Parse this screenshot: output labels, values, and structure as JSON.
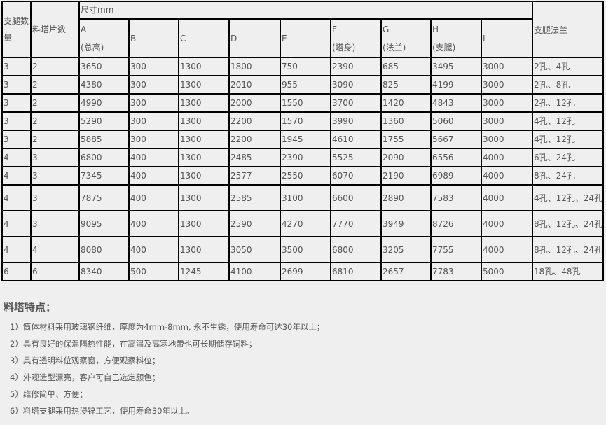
{
  "table": {
    "header": {
      "legs": "支腿数量",
      "pieces": "料塔片数",
      "size": "尺寸mm",
      "flange": "支腿法兰",
      "cols": [
        {
          "label": "A",
          "sub": "(总高)"
        },
        {
          "label": "B",
          "sub": ""
        },
        {
          "label": "C",
          "sub": ""
        },
        {
          "label": "D",
          "sub": ""
        },
        {
          "label": "E",
          "sub": ""
        },
        {
          "label": "F",
          "sub": "(塔身)"
        },
        {
          "label": "G",
          "sub": "(法兰)"
        },
        {
          "label": "H",
          "sub": "(支腿)"
        },
        {
          "label": "I",
          "sub": ""
        }
      ]
    },
    "rows": [
      [
        "3",
        "2",
        "3650",
        "300",
        "1300",
        "1800",
        "750",
        "2390",
        "685",
        "3495",
        "3000",
        "2孔、4孔"
      ],
      [
        "3",
        "2",
        "4380",
        "300",
        "1300",
        "2010",
        "955",
        "3090",
        "825",
        "4199",
        "3000",
        "2孔、8孔"
      ],
      [
        "3",
        "2",
        "4990",
        "300",
        "1300",
        "2000",
        "1550",
        "3700",
        "1420",
        "4843",
        "3000",
        "2孔、12孔"
      ],
      [
        "3",
        "2",
        "5290",
        "300",
        "1300",
        "2200",
        "1570",
        "3990",
        "1360",
        "5060",
        "3000",
        "4孔、12孔"
      ],
      [
        "3",
        "2",
        "5885",
        "300",
        "1300",
        "2200",
        "1945",
        "4610",
        "1755",
        "5667",
        "3000",
        "4孔、12孔"
      ],
      [
        "4",
        "3",
        "6800",
        "400",
        "1300",
        "2485",
        "2390",
        "5525",
        "2090",
        "6556",
        "4000",
        "6孔、24孔"
      ],
      [
        "4",
        "3",
        "7345",
        "400",
        "1300",
        "2577",
        "2550",
        "6070",
        "2190",
        "6989",
        "4000",
        "8孔、24孔"
      ],
      [
        "4",
        "3",
        "7875",
        "400",
        "1300",
        "2585",
        "3100",
        "6600",
        "2890",
        "7583",
        "4000",
        "4孔、12孔、24孔"
      ],
      [
        "4",
        "3",
        "9095",
        "400",
        "1300",
        "2590",
        "4270",
        "7770",
        "3949",
        "8726",
        "4000",
        "8孔、12孔、24孔"
      ],
      [
        "4",
        "4",
        "8080",
        "400",
        "1300",
        "3050",
        "3500",
        "6800",
        "3205",
        "7755",
        "4000",
        "8孔、12孔、24孔"
      ],
      [
        "6",
        "6",
        "8340",
        "500",
        "1245",
        "4100",
        "2699",
        "6810",
        "2657",
        "7783",
        "5000",
        "18孔、48孔"
      ]
    ]
  },
  "features": {
    "title": "料塔特点：",
    "items": [
      "1）筒体材料采用玻璃钢纤维，厚度为4mm-8mm, 永不生锈，使用寿命可达30年以上；",
      "2）具有良好的保温隔热性能，在高温及高寒地带也可长期储存饲料；",
      "3）具有透明料位观察窗，方便观察料位；",
      "4）外观造型漂亮，客户可自己选定颜色；",
      "5）维修简单、方便；",
      "6）料塔支腿采用热浸锌工艺，使用寿命30年以上。"
    ]
  }
}
